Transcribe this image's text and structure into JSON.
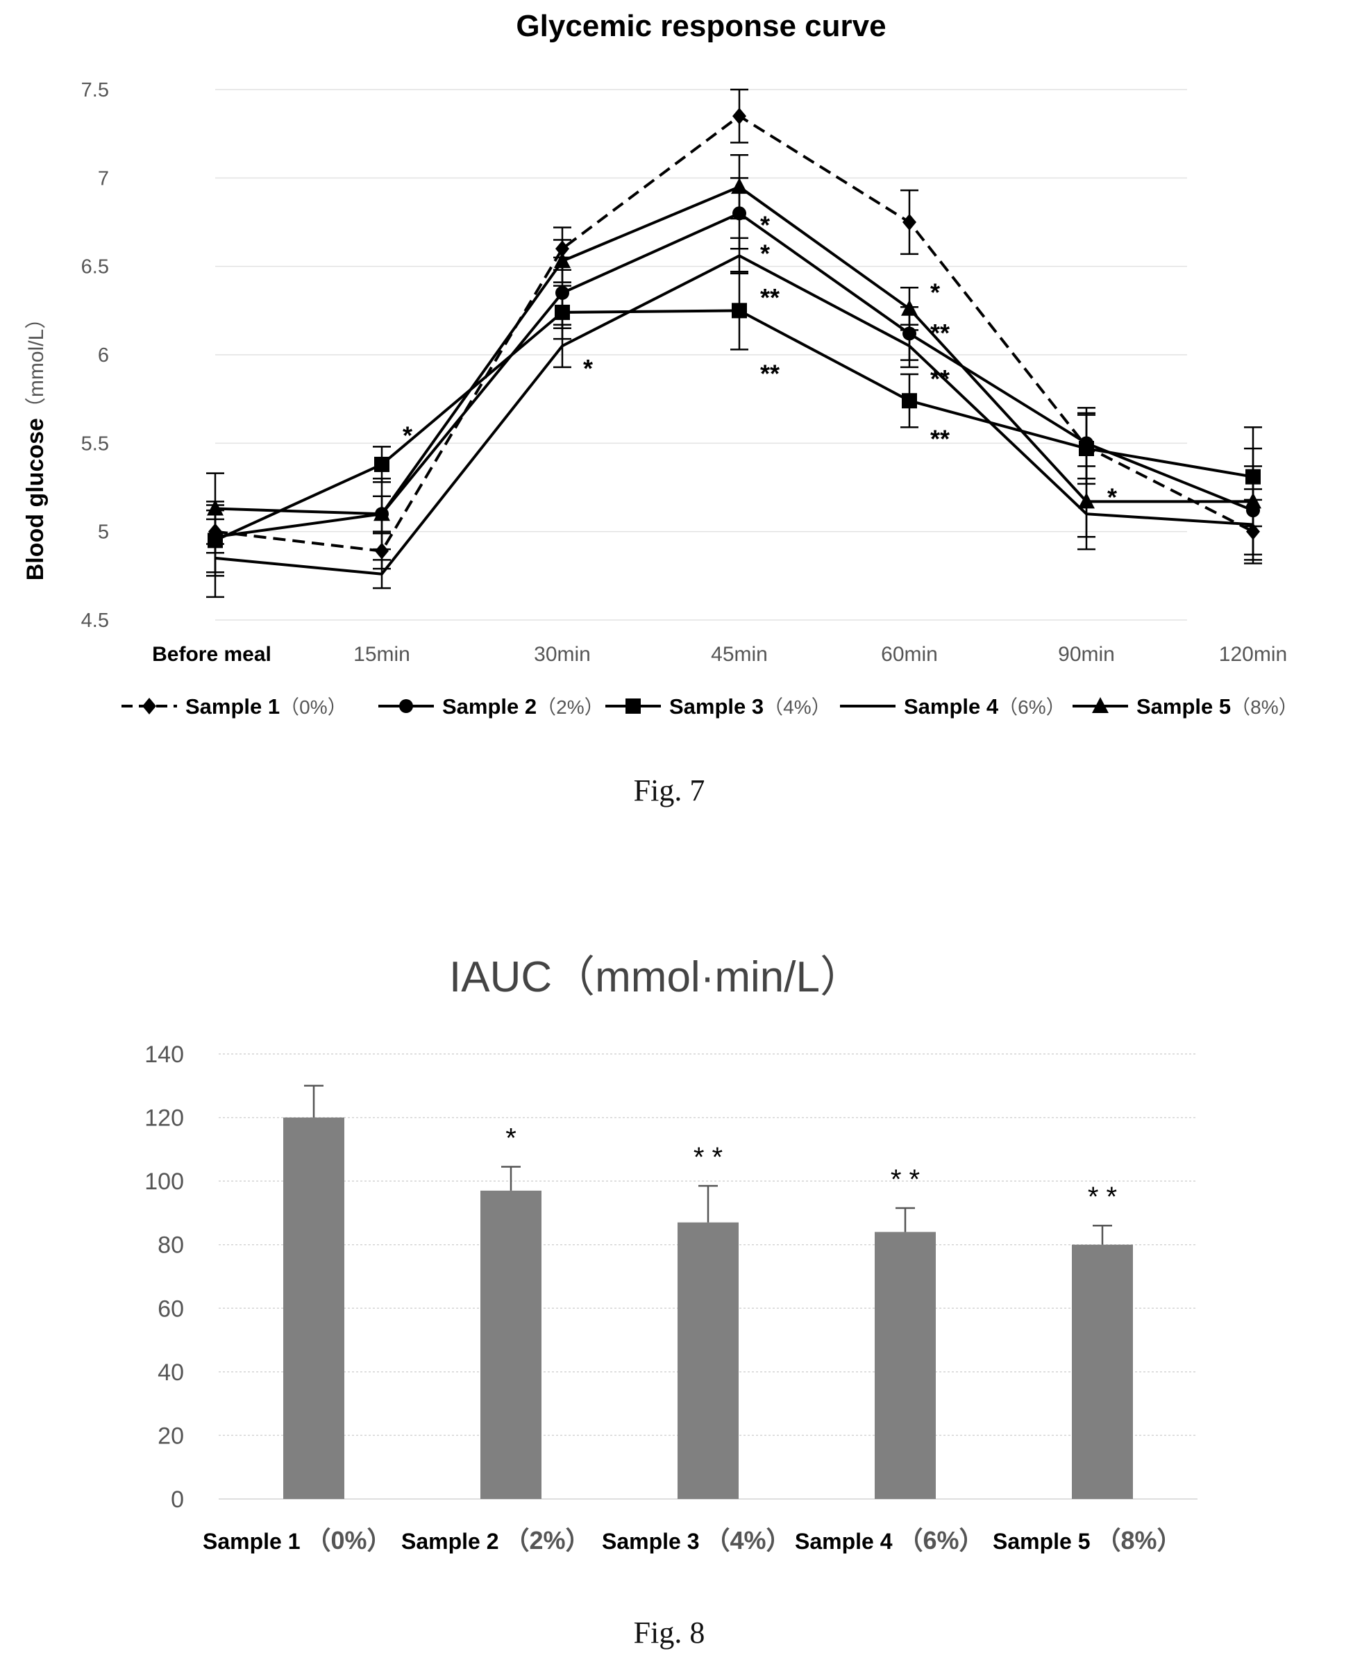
{
  "figure7": {
    "caption": "Fig. 7",
    "chart_data": {
      "type": "line",
      "title": "Glycemic response curve",
      "xlabel": "",
      "ylabel": "Blood glucose",
      "ylabel_unit": "（mmol/L）",
      "ylim": [
        4.5,
        7.5
      ],
      "yticks": [
        "4.5",
        "5",
        "5.5",
        "6",
        "6.5",
        "7",
        "7.5"
      ],
      "grid": true,
      "legend_position": "bottom",
      "categories": [
        "Before meal",
        "15min",
        "30min",
        "45min",
        "60min",
        "90min",
        "120min"
      ],
      "series": [
        {
          "name": "Sample 1",
          "pct": "（0%）",
          "marker": "diamond",
          "dash": true,
          "values": [
            5.0,
            4.89,
            6.6,
            7.35,
            6.75,
            5.48,
            5.0
          ],
          "errors": [
            0.12,
            0.1,
            0.12,
            0.15,
            0.18,
            0.18,
            0.18
          ]
        },
        {
          "name": "Sample 2",
          "pct": "（2%）",
          "marker": "circle",
          "dash": false,
          "values": [
            4.97,
            5.1,
            6.35,
            6.8,
            6.12,
            5.5,
            5.12
          ],
          "errors": [
            0.2,
            0.2,
            0.2,
            0.2,
            0.15,
            0.2,
            0.25
          ]
        },
        {
          "name": "Sample 3",
          "pct": "（4%）",
          "marker": "square",
          "dash": false,
          "values": [
            4.95,
            5.38,
            6.24,
            6.25,
            5.74,
            5.47,
            5.31
          ],
          "errors": [
            0.2,
            0.1,
            0.15,
            0.22,
            0.15,
            0.2,
            0.28
          ]
        },
        {
          "name": "Sample 4",
          "pct": "（6%）",
          "marker": "none",
          "dash": false,
          "values": [
            4.85,
            4.76,
            6.05,
            6.56,
            6.05,
            5.1,
            5.04
          ],
          "errors": [
            0.22,
            0.08,
            0.12,
            0.1,
            0.12,
            0.2,
            0.2
          ]
        },
        {
          "name": "Sample 5",
          "pct": "（8%）",
          "marker": "triangle",
          "dash": false,
          "values": [
            5.13,
            5.1,
            6.53,
            6.95,
            6.26,
            5.17,
            5.17
          ],
          "errors": [
            0.2,
            0.1,
            0.12,
            0.18,
            0.12,
            0.2,
            0.3
          ]
        }
      ],
      "annotations": [
        {
          "text": "*",
          "x": "15min",
          "y": 5.55
        },
        {
          "text": "*",
          "x": "30min",
          "y": 5.93
        },
        {
          "text": "*",
          "x": "45min",
          "y": 6.74
        },
        {
          "text": "*",
          "x": "45min",
          "y": 6.58
        },
        {
          "text": "**",
          "x": "45min",
          "y": 6.33
        },
        {
          "text": "**",
          "x": "45min",
          "y": 5.9
        },
        {
          "text": "*",
          "x": "60min",
          "y": 6.36
        },
        {
          "text": "**",
          "x": "60min",
          "y": 6.13
        },
        {
          "text": "**",
          "x": "60min",
          "y": 5.87
        },
        {
          "text": "**",
          "x": "60min",
          "y": 5.53
        },
        {
          "text": "*",
          "x": "90min",
          "y": 5.2
        }
      ]
    }
  },
  "figure8": {
    "caption": "Fig. 8",
    "chart_data": {
      "type": "bar",
      "title": "IAUC（mmol·min/L）",
      "xlabel": "",
      "ylabel": "",
      "ylim": [
        0,
        140
      ],
      "yticks": [
        "0",
        "20",
        "40",
        "60",
        "80",
        "100",
        "120",
        "140"
      ],
      "grid": true,
      "bar_color": "#808080",
      "categories": [
        "Sample 1",
        "Sample 2",
        "Sample 3",
        "Sample 4",
        "Sample 5"
      ],
      "category_pcts": [
        "（0%）",
        "（2%）",
        "（4%）",
        "（6%）",
        "（8%）"
      ],
      "values": [
        120,
        97,
        87,
        84,
        80
      ],
      "errors": [
        10,
        7.5,
        11.5,
        7.5,
        6
      ],
      "annotations": [
        "",
        "*",
        "* *",
        "* *",
        "* *"
      ]
    }
  }
}
